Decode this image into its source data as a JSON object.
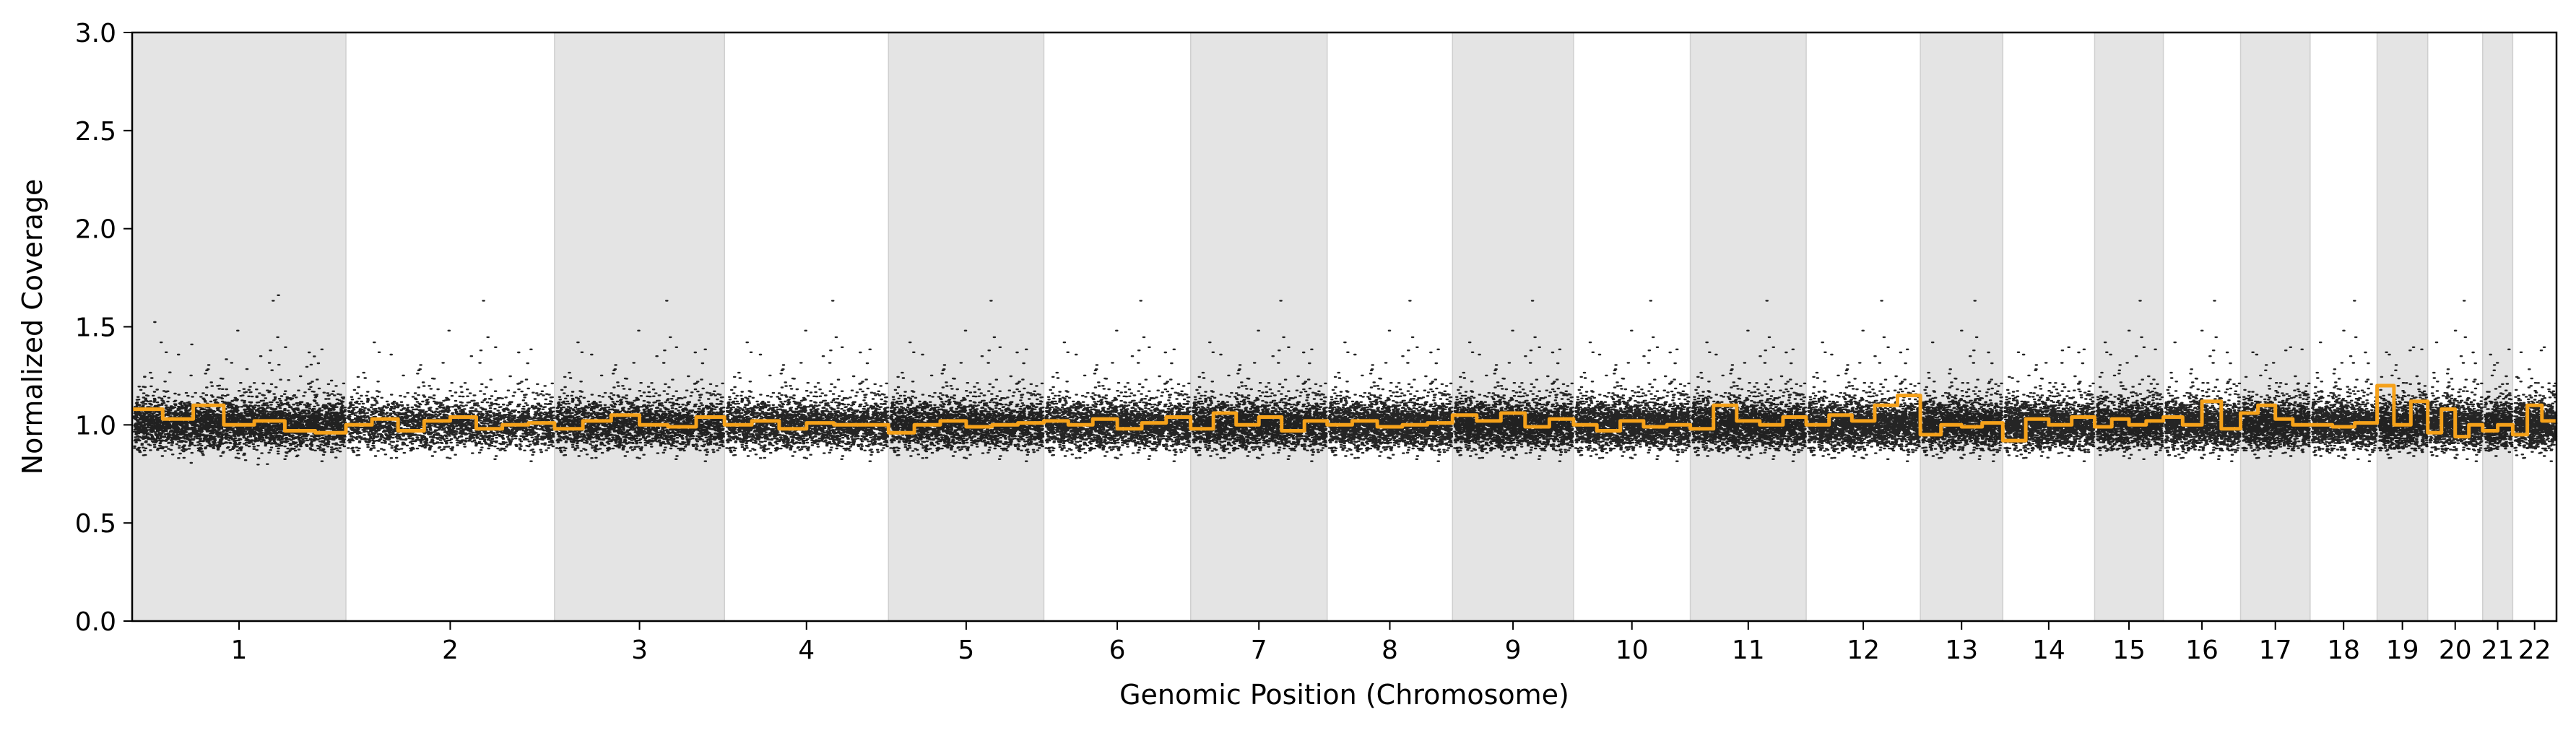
{
  "chart_data": {
    "type": "scatter",
    "xlabel": "Genomic Position (Chromosome)",
    "ylabel": "Normalized Coverage",
    "ylim": [
      0,
      3.0
    ],
    "yticks": [
      "0.0",
      "0.5",
      "1.0",
      "1.5",
      "2.0",
      "2.5",
      "3.0"
    ],
    "chromosomes": [
      {
        "name": "1",
        "length": 249
      },
      {
        "name": "2",
        "length": 243
      },
      {
        "name": "3",
        "length": 198
      },
      {
        "name": "4",
        "length": 191
      },
      {
        "name": "5",
        "length": 181
      },
      {
        "name": "6",
        "length": 171
      },
      {
        "name": "7",
        "length": 159
      },
      {
        "name": "8",
        "length": 146
      },
      {
        "name": "9",
        "length": 141
      },
      {
        "name": "10",
        "length": 136
      },
      {
        "name": "11",
        "length": 135
      },
      {
        "name": "12",
        "length": 133
      },
      {
        "name": "13",
        "length": 96
      },
      {
        "name": "14",
        "length": 107
      },
      {
        "name": "15",
        "length": 80
      },
      {
        "name": "16",
        "length": 90
      },
      {
        "name": "17",
        "length": 81
      },
      {
        "name": "18",
        "length": 78
      },
      {
        "name": "19",
        "length": 59
      },
      {
        "name": "20",
        "length": 64
      },
      {
        "name": "21",
        "length": 35
      },
      {
        "name": "22",
        "length": 51
      }
    ],
    "shaded_chromosomes": [
      "1",
      "3",
      "5",
      "7",
      "9",
      "11",
      "13",
      "15",
      "17",
      "19",
      "21"
    ],
    "series": [
      {
        "kind": "points",
        "color": "#000000",
        "median": 1.0,
        "spread": 0.06
      },
      {
        "kind": "segments",
        "color": "#f5a11a",
        "segments": [
          {
            "chrom": "1",
            "levels": [
              1.08,
              1.03,
              1.1,
              1.0,
              1.02,
              0.97,
              0.96
            ]
          },
          {
            "chrom": "2",
            "levels": [
              1.0,
              1.03,
              0.97,
              1.02,
              1.04,
              0.98,
              1.0,
              1.01
            ]
          },
          {
            "chrom": "3",
            "levels": [
              0.98,
              1.02,
              1.05,
              1.0,
              0.99,
              1.04
            ]
          },
          {
            "chrom": "4",
            "levels": [
              1.0,
              1.02,
              0.98,
              1.01,
              1.0,
              1.0
            ]
          },
          {
            "chrom": "5",
            "levels": [
              0.96,
              1.0,
              1.02,
              0.99,
              1.0,
              1.01
            ]
          },
          {
            "chrom": "6",
            "levels": [
              1.02,
              1.0,
              1.03,
              0.98,
              1.01,
              1.04
            ]
          },
          {
            "chrom": "7",
            "levels": [
              0.98,
              1.06,
              1.0,
              1.04,
              0.97,
              1.02
            ]
          },
          {
            "chrom": "8",
            "levels": [
              1.0,
              1.02,
              0.99,
              1.0,
              1.01
            ]
          },
          {
            "chrom": "9",
            "levels": [
              1.05,
              1.02,
              1.06,
              0.99,
              1.03
            ]
          },
          {
            "chrom": "10",
            "levels": [
              1.0,
              0.97,
              1.02,
              0.99,
              1.0
            ]
          },
          {
            "chrom": "11",
            "levels": [
              0.98,
              1.1,
              1.02,
              1.0,
              1.04
            ]
          },
          {
            "chrom": "12",
            "levels": [
              1.0,
              1.05,
              1.02,
              1.1,
              1.15
            ]
          },
          {
            "chrom": "13",
            "levels": [
              0.95,
              1.0,
              0.99,
              1.01
            ]
          },
          {
            "chrom": "14",
            "levels": [
              0.92,
              1.03,
              1.0,
              1.04
            ]
          },
          {
            "chrom": "15",
            "levels": [
              0.99,
              1.03,
              1.0,
              1.02
            ]
          },
          {
            "chrom": "16",
            "levels": [
              1.04,
              1.0,
              1.12,
              0.98
            ]
          },
          {
            "chrom": "17",
            "levels": [
              1.06,
              1.1,
              1.03,
              1.0
            ]
          },
          {
            "chrom": "18",
            "levels": [
              1.0,
              0.99,
              1.01
            ]
          },
          {
            "chrom": "19",
            "levels": [
              1.2,
              1.0,
              1.12
            ]
          },
          {
            "chrom": "20",
            "levels": [
              0.96,
              1.08,
              0.94,
              1.0
            ]
          },
          {
            "chrom": "21",
            "levels": [
              0.97,
              1.0
            ]
          },
          {
            "chrom": "22",
            "levels": [
              0.95,
              1.1,
              1.02
            ]
          }
        ]
      }
    ],
    "grid": false,
    "legend": false
  }
}
